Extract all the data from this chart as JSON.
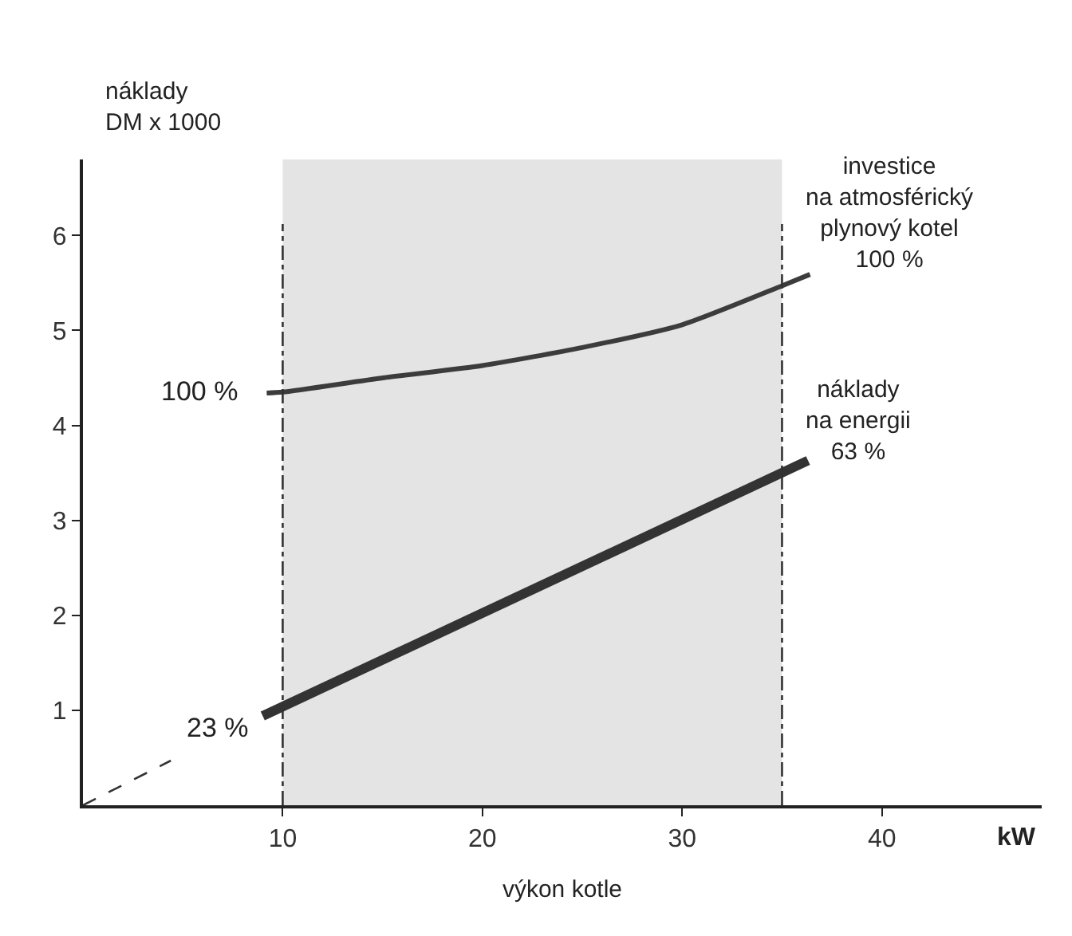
{
  "chart_data": {
    "type": "line",
    "xlabel": "výkon kotle",
    "ylabel": "náklady\nDM x 1000",
    "series": [
      {
        "color": "#3c3c3c",
        "x": [
          9.2,
          10,
          15,
          20,
          25,
          30,
          35,
          36.4
        ],
        "values": [
          4.34,
          4.35,
          4.5,
          4.63,
          4.82,
          5.06,
          5.47,
          5.59
        ],
        "line_style": "solid"
      },
      {
        "color": "#333333",
        "x": [
          9,
          36.3
        ],
        "values": [
          0.94,
          3.63
        ],
        "line_style": "solid"
      },
      {
        "color": "#333333",
        "x": [
          0,
          4.4
        ],
        "values": [
          0,
          0.47
        ],
        "line_style": "dashed"
      }
    ],
    "bands": [
      {
        "axis": "x",
        "from": 10,
        "to": 35,
        "color": "#e4e4e4"
      }
    ],
    "ref_lines": [
      {
        "axis": "x",
        "value": 10,
        "color": "#333333",
        "line_style": "dashdot"
      },
      {
        "axis": "x",
        "value": 35,
        "color": "#333333",
        "line_style": "dashdot"
      }
    ],
    "annotations": [
      "kW",
      "100 %",
      "23 %",
      "investice\nna atmosférický\nplynový kotel\n100 %",
      "náklady\nna energii\n63 %"
    ],
    "xlim": [
      0,
      48
    ],
    "ylim": [
      0,
      6.8
    ],
    "xticks": [
      10,
      20,
      30,
      40
    ],
    "yticks": [
      1,
      2,
      3,
      4,
      5,
      6
    ],
    "grid": false,
    "marker": "none"
  }
}
